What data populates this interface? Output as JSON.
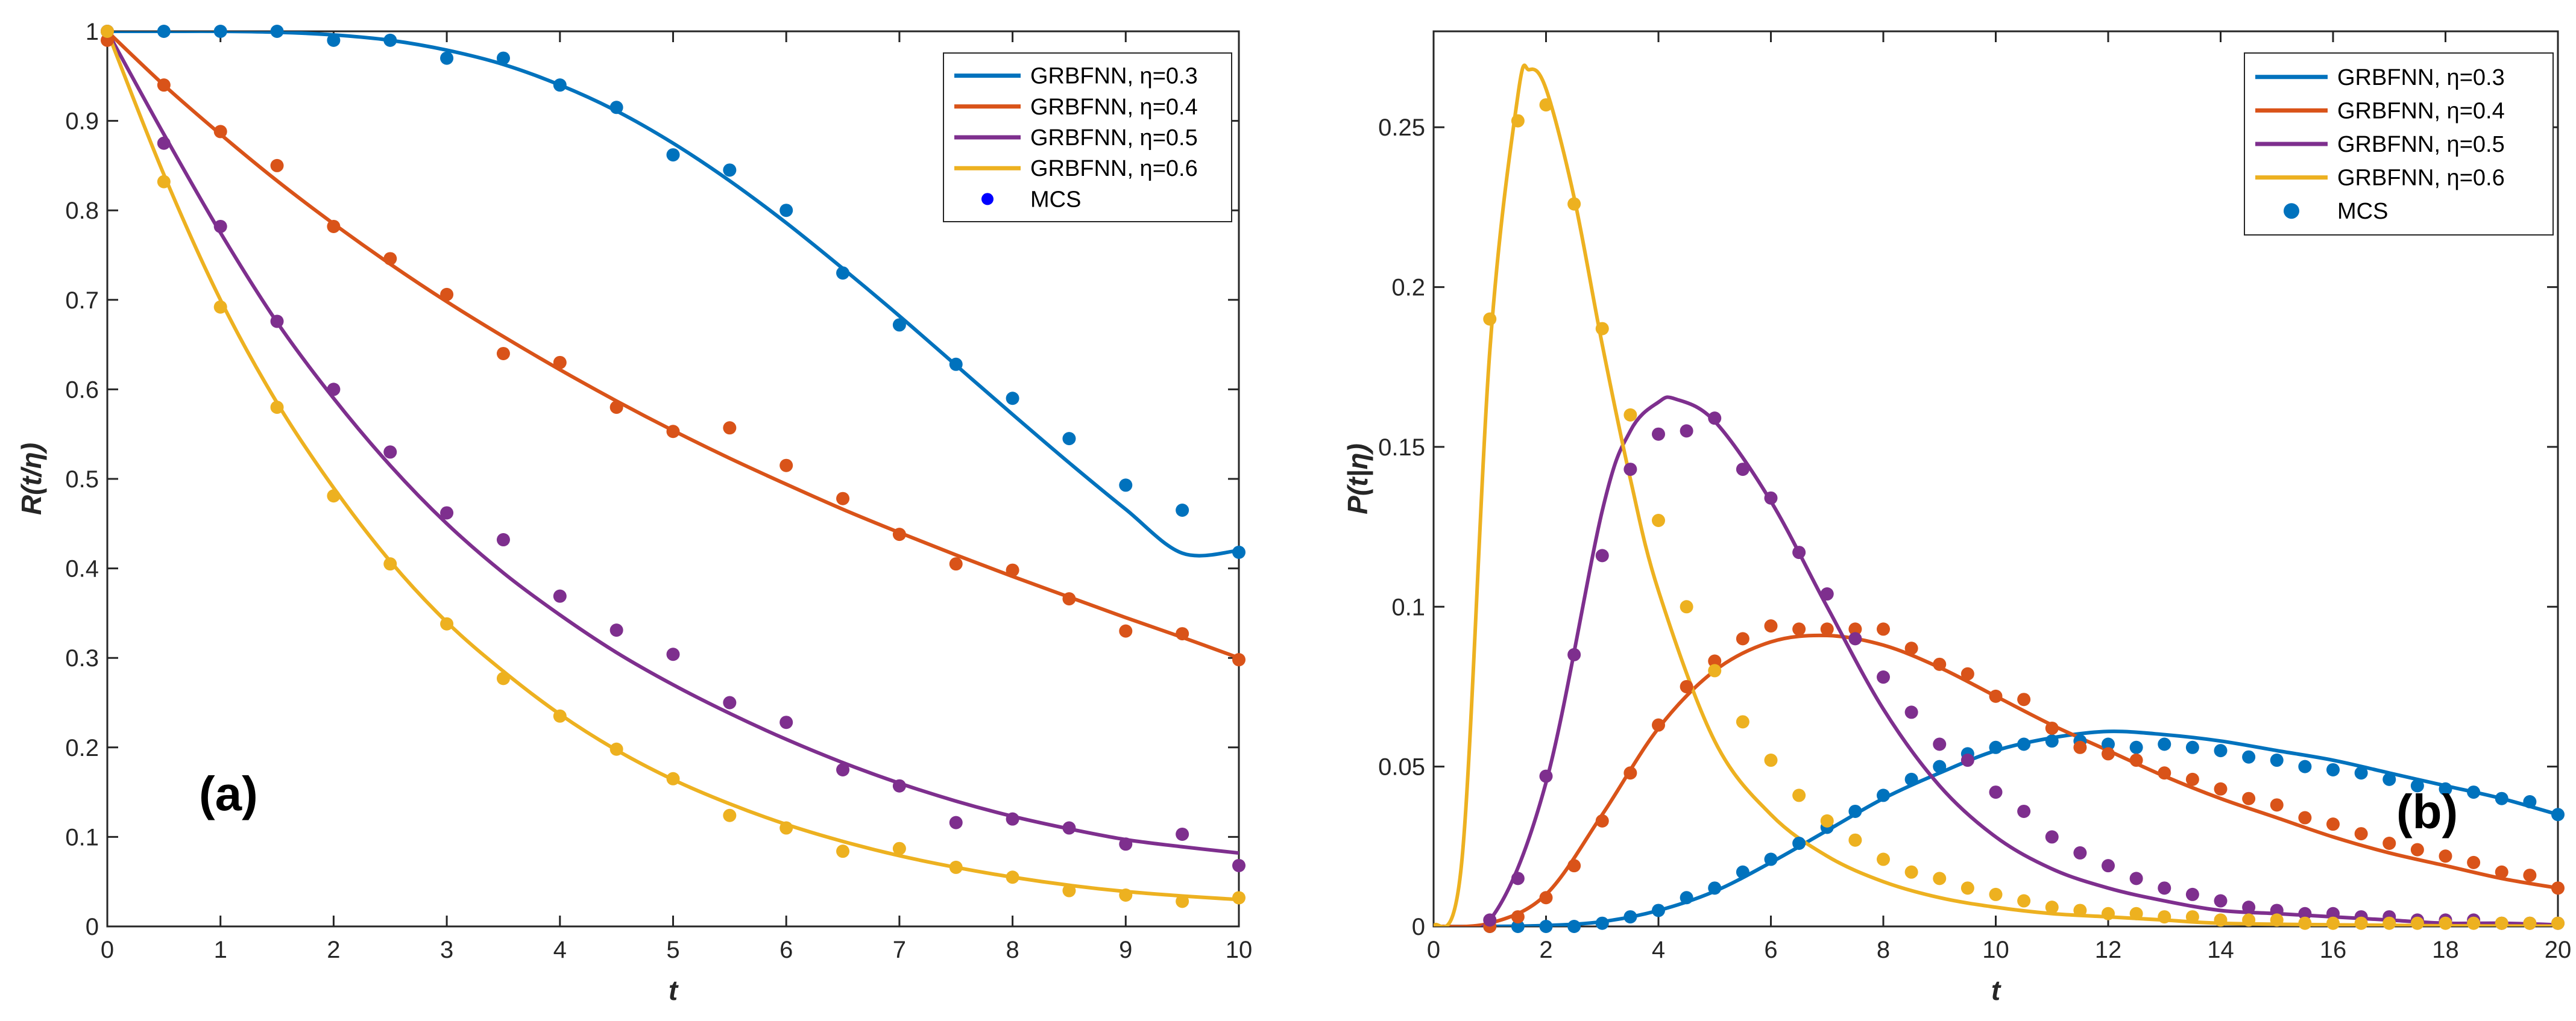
{
  "chart_data": [
    {
      "type": "line",
      "panel_label": "(a)",
      "xlabel": "t",
      "ylabel": "R(t/η)",
      "xlim": [
        0,
        10
      ],
      "ylim": [
        0,
        1
      ],
      "xticks": [
        0,
        1,
        2,
        3,
        4,
        5,
        6,
        7,
        8,
        9,
        10
      ],
      "yticks": [
        0,
        0.1,
        0.2,
        0.3,
        0.4,
        0.5,
        0.6,
        0.7,
        0.8,
        0.9,
        1
      ],
      "legend_location": "top-right",
      "series": [
        {
          "name": "GRBFNN, η=0.3",
          "color": "#0072BD",
          "x": [
            0,
            0.5,
            1,
            1.5,
            2,
            2.5,
            3,
            3.5,
            4,
            4.5,
            5,
            5.5,
            6,
            6.5,
            7,
            7.5,
            8,
            8.5,
            9,
            9.5,
            10
          ],
          "values": [
            1,
            1,
            1,
            0.999,
            0.996,
            0.99,
            0.979,
            0.963,
            0.94,
            0.911,
            0.875,
            0.833,
            0.786,
            0.735,
            0.682,
            0.627,
            0.572,
            0.518,
            0.466,
            0.417,
            0.42
          ]
        },
        {
          "name": "GRBFNN, η=0.4",
          "color": "#D95319",
          "x": [
            0,
            0.5,
            1,
            1.5,
            2,
            2.5,
            3,
            3.5,
            4,
            4.5,
            5,
            5.5,
            6,
            6.5,
            7,
            7.5,
            8,
            8.5,
            9,
            9.5,
            10
          ],
          "values": [
            1,
            0.94,
            0.885,
            0.833,
            0.785,
            0.74,
            0.698,
            0.659,
            0.622,
            0.587,
            0.554,
            0.523,
            0.494,
            0.466,
            0.44,
            0.415,
            0.391,
            0.368,
            0.345,
            0.323,
            0.3
          ]
        },
        {
          "name": "GRBFNN, η=0.5",
          "color": "#7E2F8E",
          "x": [
            0,
            0.5,
            1,
            1.5,
            2,
            2.5,
            3,
            3.5,
            4,
            4.5,
            5,
            5.5,
            6,
            6.5,
            7,
            7.5,
            8,
            8.5,
            9,
            9.5,
            10
          ],
          "values": [
            1,
            0.885,
            0.775,
            0.675,
            0.59,
            0.515,
            0.45,
            0.395,
            0.348,
            0.306,
            0.27,
            0.238,
            0.209,
            0.183,
            0.16,
            0.14,
            0.123,
            0.109,
            0.097,
            0.089,
            0.082
          ]
        },
        {
          "name": "GRBFNN, η=0.6",
          "color": "#EDB120",
          "x": [
            0,
            0.5,
            1,
            1.5,
            2,
            2.5,
            3,
            3.5,
            4,
            4.5,
            5,
            5.5,
            6,
            6.5,
            7,
            7.5,
            8,
            8.5,
            9,
            9.5,
            10
          ],
          "values": [
            1,
            0.84,
            0.7,
            0.585,
            0.49,
            0.408,
            0.34,
            0.285,
            0.237,
            0.197,
            0.164,
            0.137,
            0.114,
            0.095,
            0.079,
            0.066,
            0.055,
            0.046,
            0.039,
            0.034,
            0.03
          ]
        },
        {
          "name": "MCS",
          "marker": "dot",
          "color": "#0000FF"
        }
      ],
      "mcs_points": [
        {
          "series": 0,
          "x": [
            0,
            0.5,
            1,
            1.5,
            2,
            2.5,
            3,
            3.5,
            4,
            4.5,
            5,
            5.5,
            6,
            6.5,
            7,
            7.5,
            8,
            8.5,
            9,
            9.5,
            10
          ],
          "values": [
            1,
            1,
            1,
            1,
            0.99,
            0.99,
            0.97,
            0.97,
            0.94,
            0.915,
            0.862,
            0.845,
            0.8,
            0.73,
            0.672,
            0.628,
            0.59,
            0.545,
            0.493,
            0.465,
            0.418
          ]
        },
        {
          "series": 1,
          "x": [
            0,
            0.5,
            1,
            1.5,
            2,
            2.5,
            3,
            3.5,
            4,
            4.5,
            5,
            5.5,
            6,
            6.5,
            7,
            7.5,
            8,
            8.5,
            9,
            9.5,
            10
          ],
          "values": [
            0.99,
            0.94,
            0.888,
            0.85,
            0.782,
            0.746,
            0.706,
            0.64,
            0.63,
            0.58,
            0.553,
            0.557,
            0.515,
            0.478,
            0.438,
            0.405,
            0.398,
            0.366,
            0.33,
            0.327,
            0.298
          ]
        },
        {
          "series": 2,
          "x": [
            0,
            0.5,
            1,
            1.5,
            2,
            2.5,
            3,
            3.5,
            4,
            4.5,
            5,
            5.5,
            6,
            6.5,
            7,
            7.5,
            8,
            8.5,
            9,
            9.5,
            10
          ],
          "values": [
            1,
            0.875,
            0.782,
            0.676,
            0.6,
            0.53,
            0.462,
            0.432,
            0.369,
            0.331,
            0.304,
            0.25,
            0.228,
            0.175,
            0.157,
            0.116,
            0.12,
            0.11,
            0.092,
            0.103,
            0.068
          ]
        },
        {
          "series": 3,
          "x": [
            0,
            0.5,
            1,
            1.5,
            2,
            2.5,
            3,
            3.5,
            4,
            4.5,
            5,
            5.5,
            6,
            6.5,
            7,
            7.5,
            8,
            8.5,
            9,
            9.5,
            10
          ],
          "values": [
            1,
            0.832,
            0.692,
            0.58,
            0.481,
            0.405,
            0.338,
            0.277,
            0.235,
            0.198,
            0.165,
            0.124,
            0.11,
            0.084,
            0.087,
            0.066,
            0.055,
            0.04,
            0.035,
            0.028,
            0.032
          ]
        }
      ]
    },
    {
      "type": "line",
      "panel_label": "(b)",
      "xlabel": "t",
      "ylabel": "P(t|η)",
      "xlim": [
        0,
        20
      ],
      "ylim": [
        0,
        0.28
      ],
      "xticks": [
        0,
        2,
        4,
        6,
        8,
        10,
        12,
        14,
        16,
        18,
        20
      ],
      "yticks": [
        0,
        0.05,
        0.1,
        0.15,
        0.2,
        0.25
      ],
      "legend_location": "top-right",
      "series": [
        {
          "name": "GRBFNN, η=0.3",
          "color": "#0072BD",
          "x": [
            0,
            1,
            2,
            3,
            4,
            5,
            6,
            7,
            8,
            9,
            10,
            11,
            12,
            13,
            14,
            15,
            16,
            17,
            18,
            19,
            20
          ],
          "values": [
            0,
            0,
            0.0003,
            0.0015,
            0.005,
            0.011,
            0.02,
            0.03,
            0.04,
            0.048,
            0.055,
            0.059,
            0.061,
            0.06,
            0.058,
            0.055,
            0.052,
            0.048,
            0.044,
            0.04,
            0.035
          ]
        },
        {
          "name": "GRBFNN, η=0.4",
          "color": "#D95319",
          "x": [
            0,
            1,
            2,
            3,
            4,
            5,
            6,
            7,
            8,
            9,
            10,
            11,
            12,
            13,
            14,
            15,
            16,
            17,
            18,
            19,
            20
          ],
          "values": [
            0,
            0.001,
            0.01,
            0.035,
            0.062,
            0.08,
            0.089,
            0.091,
            0.088,
            0.081,
            0.072,
            0.063,
            0.055,
            0.047,
            0.04,
            0.034,
            0.028,
            0.023,
            0.019,
            0.015,
            0.012
          ]
        },
        {
          "name": "GRBFNN, η=0.5",
          "color": "#7E2F8E",
          "x": [
            0,
            1,
            2,
            3,
            3.5,
            4,
            4.3,
            5,
            6,
            7,
            8,
            9,
            10,
            11,
            12,
            13,
            14,
            15,
            16,
            17,
            18,
            19,
            20
          ],
          "values": [
            0,
            0.002,
            0.045,
            0.13,
            0.155,
            0.164,
            0.165,
            0.158,
            0.133,
            0.1,
            0.068,
            0.044,
            0.028,
            0.018,
            0.012,
            0.008,
            0.005,
            0.004,
            0.003,
            0.002,
            0.001,
            0.001,
            0.0005
          ]
        },
        {
          "name": "GRBFNN, η=0.6",
          "color": "#EDB120",
          "x": [
            0,
            0.5,
            1,
            1.5,
            1.7,
            2,
            2.5,
            3,
            3.5,
            4,
            5,
            6,
            7,
            8,
            9,
            10,
            11,
            12,
            13,
            14,
            16,
            18,
            20
          ],
          "values": [
            0,
            0.02,
            0.18,
            0.26,
            0.268,
            0.262,
            0.228,
            0.182,
            0.14,
            0.105,
            0.058,
            0.035,
            0.022,
            0.014,
            0.009,
            0.006,
            0.004,
            0.003,
            0.002,
            0.001,
            0.0005,
            0.0002,
            0.0001
          ]
        },
        {
          "name": "MCS",
          "marker": "dot",
          "color": "#0072BD"
        }
      ],
      "mcs_points": [
        {
          "series": 0,
          "x": [
            1,
            1.5,
            2,
            2.5,
            3,
            3.5,
            4,
            4.5,
            5,
            5.5,
            6,
            6.5,
            7,
            7.5,
            8,
            8.5,
            9,
            9.5,
            10,
            10.5,
            11,
            11.5,
            12,
            12.5,
            13,
            13.5,
            14,
            14.5,
            15,
            15.5,
            16,
            16.5,
            17,
            17.5,
            18,
            18.5,
            19,
            19.5,
            20
          ],
          "values": [
            0,
            0,
            0,
            0,
            0.001,
            0.003,
            0.005,
            0.009,
            0.012,
            0.017,
            0.021,
            0.026,
            0.031,
            0.036,
            0.041,
            0.046,
            0.05,
            0.054,
            0.056,
            0.057,
            0.058,
            0.058,
            0.057,
            0.056,
            0.057,
            0.056,
            0.055,
            0.053,
            0.052,
            0.05,
            0.049,
            0.048,
            0.046,
            0.044,
            0.043,
            0.042,
            0.04,
            0.039,
            0.035
          ]
        },
        {
          "series": 1,
          "x": [
            1,
            1.5,
            2,
            2.5,
            3,
            3.5,
            4,
            4.5,
            5,
            5.5,
            6,
            6.5,
            7,
            7.5,
            8,
            8.5,
            9,
            9.5,
            10,
            10.5,
            11,
            11.5,
            12,
            12.5,
            13,
            13.5,
            14,
            14.5,
            15,
            15.5,
            16,
            16.5,
            17,
            17.5,
            18,
            18.5,
            19,
            19.5,
            20
          ],
          "values": [
            0,
            0.003,
            0.009,
            0.019,
            0.033,
            0.048,
            0.063,
            0.075,
            0.083,
            0.09,
            0.094,
            0.093,
            0.093,
            0.093,
            0.093,
            0.087,
            0.082,
            0.079,
            0.072,
            0.071,
            0.062,
            0.056,
            0.054,
            0.052,
            0.048,
            0.046,
            0.043,
            0.04,
            0.038,
            0.034,
            0.032,
            0.029,
            0.026,
            0.024,
            0.022,
            0.02,
            0.017,
            0.016,
            0.012
          ]
        },
        {
          "series": 2,
          "x": [
            1,
            1.5,
            2,
            2.5,
            3,
            3.5,
            4,
            4.5,
            5,
            5.5,
            6,
            6.5,
            7,
            7.5,
            8,
            8.5,
            9,
            9.5,
            10,
            10.5,
            11,
            11.5,
            12,
            12.5,
            13,
            13.5,
            14,
            14.5,
            15,
            15.5,
            16,
            16.5,
            17,
            17.5,
            18,
            18.5,
            19,
            19.5,
            20
          ],
          "values": [
            0.002,
            0.015,
            0.047,
            0.085,
            0.116,
            0.143,
            0.154,
            0.155,
            0.159,
            0.143,
            0.134,
            0.117,
            0.104,
            0.09,
            0.078,
            0.067,
            0.057,
            0.052,
            0.042,
            0.036,
            0.028,
            0.023,
            0.019,
            0.015,
            0.012,
            0.01,
            0.008,
            0.006,
            0.005,
            0.004,
            0.004,
            0.003,
            0.003,
            0.002,
            0.002,
            0.002,
            0.001,
            0.001,
            0.001
          ]
        },
        {
          "series": 3,
          "x": [
            1,
            1.5,
            2,
            2.5,
            3,
            3.5,
            4,
            4.5,
            5,
            5.5,
            6,
            6.5,
            7,
            7.5,
            8,
            8.5,
            9,
            9.5,
            10,
            10.5,
            11,
            11.5,
            12,
            12.5,
            13,
            13.5,
            14,
            14.5,
            15,
            15.5,
            16,
            16.5,
            17,
            17.5,
            18,
            18.5,
            19,
            19.5,
            20
          ],
          "values": [
            0.19,
            0.252,
            0.257,
            0.226,
            0.187,
            0.16,
            0.127,
            0.1,
            0.08,
            0.064,
            0.052,
            0.041,
            0.033,
            0.027,
            0.021,
            0.017,
            0.015,
            0.012,
            0.01,
            0.008,
            0.006,
            0.005,
            0.004,
            0.004,
            0.003,
            0.003,
            0.002,
            0.002,
            0.002,
            0.001,
            0.001,
            0.001,
            0.001,
            0.001,
            0.001,
            0.001,
            0.001,
            0.001,
            0.001
          ]
        }
      ]
    }
  ]
}
